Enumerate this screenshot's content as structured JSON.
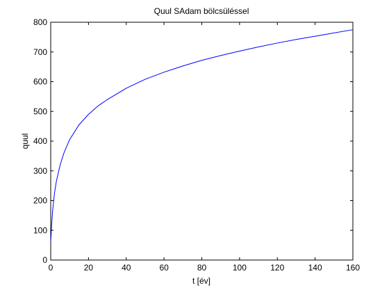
{
  "chart_data": {
    "type": "line",
    "title": "Quul SAdam bölcsüléssel",
    "xlabel": "t [év]",
    "ylabel": "quul",
    "xlim": [
      0,
      160
    ],
    "ylim": [
      0,
      800
    ],
    "xticks": [
      0,
      20,
      40,
      60,
      80,
      100,
      120,
      140,
      160
    ],
    "yticks": [
      0,
      100,
      200,
      300,
      400,
      500,
      600,
      700,
      800
    ],
    "grid": false,
    "legend": "none",
    "series": [
      {
        "color": "#0000ff",
        "x": [
          0,
          0.5,
          1,
          2,
          3,
          5,
          7,
          10,
          15,
          20,
          25,
          30,
          40,
          50,
          60,
          70,
          80,
          90,
          100,
          110,
          120,
          130,
          140,
          150,
          160
        ],
        "y": [
          60,
          120,
          165,
          225,
          265,
          320,
          360,
          405,
          455,
          490,
          518,
          540,
          578,
          608,
          632,
          653,
          672,
          688,
          703,
          717,
          730,
          742,
          753,
          764,
          775
        ]
      }
    ]
  }
}
